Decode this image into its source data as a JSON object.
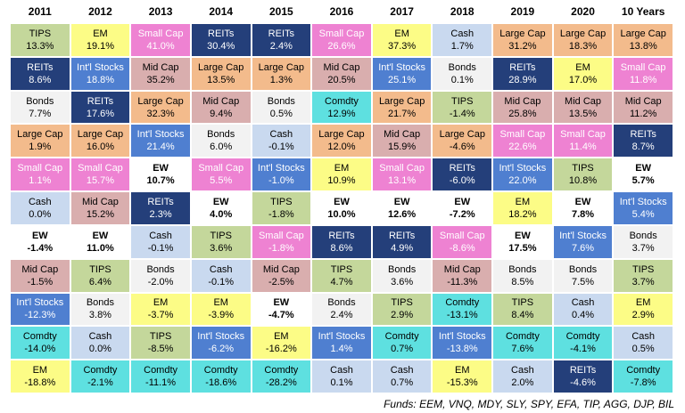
{
  "chart_data": {
    "type": "table",
    "years": [
      "2011",
      "2012",
      "2013",
      "2014",
      "2015",
      "2016",
      "2017",
      "2018",
      "2019",
      "2020",
      "10 Years"
    ],
    "columns": [
      [
        [
          "TIPS",
          "13.3%"
        ],
        [
          "REITs",
          "8.6%"
        ],
        [
          "Bonds",
          "7.7%"
        ],
        [
          "Large Cap",
          "1.9%"
        ],
        [
          "Small Cap",
          "1.1%"
        ],
        [
          "Cash",
          "0.0%"
        ],
        [
          "EW",
          "-1.4%"
        ],
        [
          "Mid Cap",
          "-1.5%"
        ],
        [
          "Int'l Stocks",
          "-12.3%"
        ],
        [
          "Comdty",
          "-14.0%"
        ],
        [
          "EM",
          "-18.8%"
        ]
      ],
      [
        [
          "EM",
          "19.1%"
        ],
        [
          "Int'l Stocks",
          "18.8%"
        ],
        [
          "REITs",
          "17.6%"
        ],
        [
          "Large Cap",
          "16.0%"
        ],
        [
          "Small Cap",
          "15.7%"
        ],
        [
          "Mid Cap",
          "15.2%"
        ],
        [
          "EW",
          "11.0%"
        ],
        [
          "TIPS",
          "6.4%"
        ],
        [
          "Bonds",
          "3.8%"
        ],
        [
          "Cash",
          "0.0%"
        ],
        [
          "Comdty",
          "-2.1%"
        ]
      ],
      [
        [
          "Small Cap",
          "41.0%"
        ],
        [
          "Mid Cap",
          "35.2%"
        ],
        [
          "Large Cap",
          "32.3%"
        ],
        [
          "Int'l Stocks",
          "21.4%"
        ],
        [
          "EW",
          "10.7%"
        ],
        [
          "REITs",
          "2.3%"
        ],
        [
          "Cash",
          "-0.1%"
        ],
        [
          "Bonds",
          "-2.0%"
        ],
        [
          "EM",
          "-3.7%"
        ],
        [
          "TIPS",
          "-8.5%"
        ],
        [
          "Comdty",
          "-11.1%"
        ]
      ],
      [
        [
          "REITs",
          "30.4%"
        ],
        [
          "Large Cap",
          "13.5%"
        ],
        [
          "Mid Cap",
          "9.4%"
        ],
        [
          "Bonds",
          "6.0%"
        ],
        [
          "Small Cap",
          "5.5%"
        ],
        [
          "EW",
          "4.0%"
        ],
        [
          "TIPS",
          "3.6%"
        ],
        [
          "Cash",
          "-0.1%"
        ],
        [
          "EM",
          "-3.9%"
        ],
        [
          "Int'l Stocks",
          "-6.2%"
        ],
        [
          "Comdty",
          "-18.6%"
        ]
      ],
      [
        [
          "REITs",
          "2.4%"
        ],
        [
          "Large Cap",
          "1.3%"
        ],
        [
          "Bonds",
          "0.5%"
        ],
        [
          "Cash",
          "-0.1%"
        ],
        [
          "Int'l Stocks",
          "-1.0%"
        ],
        [
          "TIPS",
          "-1.8%"
        ],
        [
          "Small Cap",
          "-1.8%"
        ],
        [
          "Mid Cap",
          "-2.5%"
        ],
        [
          "EW",
          "-4.7%"
        ],
        [
          "EM",
          "-16.2%"
        ],
        [
          "Comdty",
          "-28.2%"
        ]
      ],
      [
        [
          "Small Cap",
          "26.6%"
        ],
        [
          "Mid Cap",
          "20.5%"
        ],
        [
          "Comdty",
          "12.9%"
        ],
        [
          "Large Cap",
          "12.0%"
        ],
        [
          "EM",
          "10.9%"
        ],
        [
          "EW",
          "10.0%"
        ],
        [
          "REITs",
          "8.6%"
        ],
        [
          "TIPS",
          "4.7%"
        ],
        [
          "Bonds",
          "2.4%"
        ],
        [
          "Int'l Stocks",
          "1.4%"
        ],
        [
          "Cash",
          "0.1%"
        ]
      ],
      [
        [
          "EM",
          "37.3%"
        ],
        [
          "Int'l Stocks",
          "25.1%"
        ],
        [
          "Large Cap",
          "21.7%"
        ],
        [
          "Mid Cap",
          "15.9%"
        ],
        [
          "Small Cap",
          "13.1%"
        ],
        [
          "EW",
          "12.6%"
        ],
        [
          "REITs",
          "4.9%"
        ],
        [
          "Bonds",
          "3.6%"
        ],
        [
          "TIPS",
          "2.9%"
        ],
        [
          "Comdty",
          "0.7%"
        ],
        [
          "Cash",
          "0.7%"
        ]
      ],
      [
        [
          "Cash",
          "1.7%"
        ],
        [
          "Bonds",
          "0.1%"
        ],
        [
          "TIPS",
          "-1.4%"
        ],
        [
          "Large Cap",
          "-4.6%"
        ],
        [
          "REITs",
          "-6.0%"
        ],
        [
          "EW",
          "-7.2%"
        ],
        [
          "Small Cap",
          "-8.6%"
        ],
        [
          "Mid Cap",
          "-11.3%"
        ],
        [
          "Comdty",
          "-13.1%"
        ],
        [
          "Int'l Stocks",
          "-13.8%"
        ],
        [
          "EM",
          "-15.3%"
        ]
      ],
      [
        [
          "Large Cap",
          "31.2%"
        ],
        [
          "REITs",
          "28.9%"
        ],
        [
          "Mid Cap",
          "25.8%"
        ],
        [
          "Small Cap",
          "22.6%"
        ],
        [
          "Int'l Stocks",
          "22.0%"
        ],
        [
          "EM",
          "18.2%"
        ],
        [
          "EW",
          "17.5%"
        ],
        [
          "Bonds",
          "8.5%"
        ],
        [
          "TIPS",
          "8.4%"
        ],
        [
          "Comdty",
          "7.6%"
        ],
        [
          "Cash",
          "2.0%"
        ]
      ],
      [
        [
          "Large Cap",
          "18.3%"
        ],
        [
          "EM",
          "17.0%"
        ],
        [
          "Mid Cap",
          "13.5%"
        ],
        [
          "Small Cap",
          "11.4%"
        ],
        [
          "TIPS",
          "10.8%"
        ],
        [
          "EW",
          "7.8%"
        ],
        [
          "Int'l Stocks",
          "7.6%"
        ],
        [
          "Bonds",
          "7.5%"
        ],
        [
          "Cash",
          "0.4%"
        ],
        [
          "Comdty",
          "-4.1%"
        ],
        [
          "REITs",
          "-4.6%"
        ]
      ],
      [
        [
          "Large Cap",
          "13.8%"
        ],
        [
          "Small Cap",
          "11.8%"
        ],
        [
          "Mid Cap",
          "11.2%"
        ],
        [
          "REITs",
          "8.7%"
        ],
        [
          "EW",
          "5.7%"
        ],
        [
          "Int'l Stocks",
          "5.4%"
        ],
        [
          "Bonds",
          "3.7%"
        ],
        [
          "TIPS",
          "3.7%"
        ],
        [
          "EM",
          "2.9%"
        ],
        [
          "Cash",
          "0.5%"
        ],
        [
          "Comdty",
          "-7.8%"
        ]
      ]
    ],
    "colors": {
      "TIPS": {
        "bg": "#c4d79b",
        "fg": "#000000"
      },
      "REITs": {
        "bg": "#243f7a",
        "fg": "#ffffff"
      },
      "Bonds": {
        "bg": "#f2f2f2",
        "fg": "#000000"
      },
      "Large Cap": {
        "bg": "#f3bb8c",
        "fg": "#000000"
      },
      "Small Cap": {
        "bg": "#ee82d2",
        "fg": "#ffffff"
      },
      "Cash": {
        "bg": "#c9d9ef",
        "fg": "#000000"
      },
      "EW": {
        "bg": "#ffffff",
        "fg": "#000000"
      },
      "Mid Cap": {
        "bg": "#d9aeae",
        "fg": "#000000"
      },
      "Int'l Stocks": {
        "bg": "#4f7fd0",
        "fg": "#ffffff"
      },
      "Comdty": {
        "bg": "#5ee0e0",
        "fg": "#000000"
      },
      "EM": {
        "bg": "#fcfc86",
        "fg": "#000000"
      }
    }
  },
  "footer": "Funds: EEM, VNQ, MDY, SLY, SPY, EFA, TIP, AGG, DJP, BIL"
}
